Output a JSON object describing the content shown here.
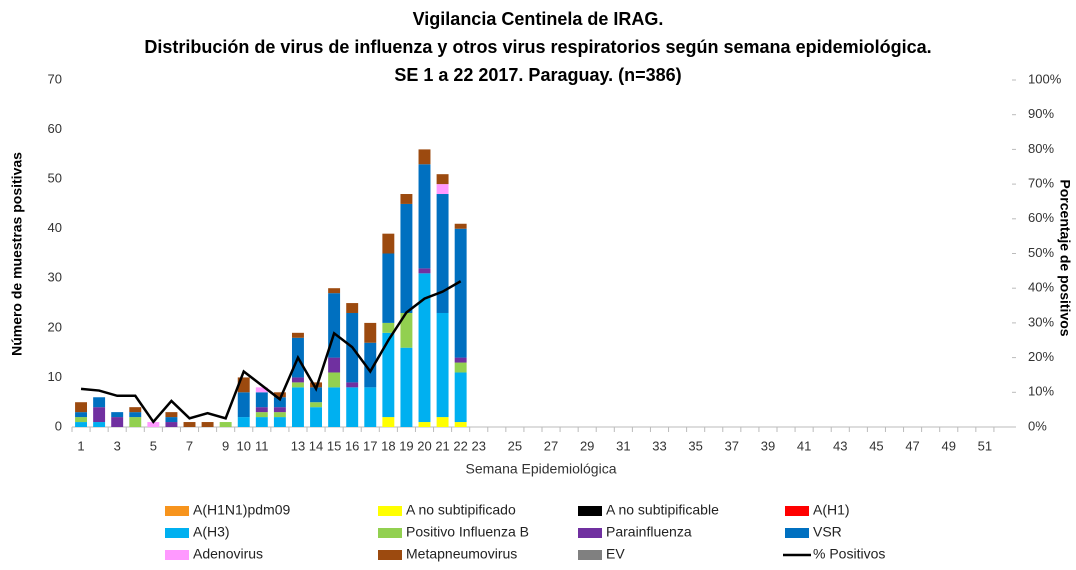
{
  "chart_data": {
    "type": "bar",
    "title": [
      "Vigilancia Centinela de IRAG.",
      "Distribución de virus de influenza y otros virus respiratorios según semana epidemiológica.",
      "SE 1 a 22 2017. Paraguay. (n=386)"
    ],
    "x_label": "Semana Epidemiológica",
    "y_label": "Número de muestras positivas",
    "y2_label": "Porcentaje de positivos",
    "stacked": true,
    "categories": [
      "1",
      null,
      "3",
      null,
      "5",
      null,
      "7",
      null,
      "9",
      "10",
      "11",
      null,
      "13",
      "14",
      "15",
      "16",
      "17",
      "18",
      "19",
      "20",
      "21",
      "22",
      "23",
      null,
      "25",
      null,
      "27",
      null,
      "29",
      null,
      "31",
      null,
      "33",
      null,
      "35",
      null,
      "37",
      null,
      "39",
      null,
      "41",
      null,
      "43",
      null,
      "45",
      null,
      "47",
      null,
      "49",
      null,
      "51",
      null
    ],
    "ylim": [
      0,
      70
    ],
    "yticks": [
      0,
      10,
      20,
      30,
      40,
      50,
      60,
      70
    ],
    "y2lim": [
      0,
      100
    ],
    "y2ticks": [
      {
        "value": 0,
        "label": "0%"
      },
      {
        "value": 10,
        "label": "10%"
      },
      {
        "value": 20,
        "label": "20%"
      },
      {
        "value": 30,
        "label": "30%"
      },
      {
        "value": 40,
        "label": "40%"
      },
      {
        "value": 50,
        "label": "50%"
      },
      {
        "value": 60,
        "label": "60%"
      },
      {
        "value": 70,
        "label": "70%"
      },
      {
        "value": 80,
        "label": "80%"
      },
      {
        "value": 90,
        "label": "90%"
      },
      {
        "value": 100,
        "label": "100%"
      }
    ],
    "series": [
      {
        "name": "A(H1N1)pdm09",
        "color": "#f7941d",
        "values": [
          0,
          0,
          0,
          0,
          0,
          0,
          0,
          0,
          0,
          0,
          0,
          0,
          0,
          0,
          0,
          0,
          0,
          0,
          0,
          0,
          0,
          0,
          null,
          null,
          null,
          null,
          null,
          null,
          null,
          null,
          null,
          null,
          null,
          null,
          null,
          null,
          null,
          null,
          null,
          null,
          null,
          null,
          null,
          null,
          null,
          null,
          null,
          null,
          null,
          null,
          null,
          null
        ]
      },
      {
        "name": "A no subtipificado",
        "color": "#ffff00",
        "values": [
          0,
          0,
          0,
          0,
          0,
          0,
          0,
          0,
          0,
          0,
          0,
          0,
          0,
          0,
          0,
          0,
          0,
          2,
          0,
          1,
          2,
          1,
          null,
          null,
          null,
          null,
          null,
          null,
          null,
          null,
          null,
          null,
          null,
          null,
          null,
          null,
          null,
          null,
          null,
          null,
          null,
          null,
          null,
          null,
          null,
          null,
          null,
          null,
          null,
          null,
          null,
          null
        ]
      },
      {
        "name": "A no subtipificable",
        "color": "#000000",
        "values": [
          0,
          0,
          0,
          0,
          0,
          0,
          0,
          0,
          0,
          0,
          0,
          0,
          0,
          0,
          0,
          0,
          0,
          0,
          0,
          0,
          0,
          0,
          null,
          null,
          null,
          null,
          null,
          null,
          null,
          null,
          null,
          null,
          null,
          null,
          null,
          null,
          null,
          null,
          null,
          null,
          null,
          null,
          null,
          null,
          null,
          null,
          null,
          null,
          null,
          null,
          null,
          null
        ]
      },
      {
        "name": "A(H1)",
        "color": "#ff0000",
        "values": [
          0,
          0,
          0,
          0,
          0,
          0,
          0,
          0,
          0,
          0,
          0,
          0,
          0,
          0,
          0,
          0,
          0,
          0,
          0,
          0,
          0,
          0,
          null,
          null,
          null,
          null,
          null,
          null,
          null,
          null,
          null,
          null,
          null,
          null,
          null,
          null,
          null,
          null,
          null,
          null,
          null,
          null,
          null,
          null,
          null,
          null,
          null,
          null,
          null,
          null,
          null,
          null
        ]
      },
      {
        "name": "A(H3)",
        "color": "#00b0f0",
        "values": [
          1,
          1,
          0,
          0,
          0,
          0,
          0,
          0,
          0,
          2,
          2,
          2,
          8,
          4,
          8,
          8,
          8,
          17,
          16,
          30,
          21,
          10,
          null,
          null,
          null,
          null,
          null,
          null,
          null,
          null,
          null,
          null,
          null,
          null,
          null,
          null,
          null,
          null,
          null,
          null,
          null,
          null,
          null,
          null,
          null,
          null,
          null,
          null,
          null,
          null,
          null,
          null
        ]
      },
      {
        "name": "Positivo Influenza  B",
        "color": "#92d050",
        "values": [
          1,
          0,
          0,
          2,
          0,
          0,
          0,
          0,
          1,
          0,
          1,
          1,
          1,
          1,
          3,
          0,
          0,
          2,
          7,
          0,
          0,
          2,
          null,
          null,
          null,
          null,
          null,
          null,
          null,
          null,
          null,
          null,
          null,
          null,
          null,
          null,
          null,
          null,
          null,
          null,
          null,
          null,
          null,
          null,
          null,
          null,
          null,
          null,
          null,
          null,
          null,
          null
        ]
      },
      {
        "name": "Parainfluenza",
        "color": "#7030a0",
        "values": [
          0,
          3,
          2,
          0,
          0,
          1,
          0,
          0,
          0,
          0,
          1,
          1,
          1,
          0,
          3,
          1,
          0,
          0,
          0,
          1,
          0,
          1,
          null,
          null,
          null,
          null,
          null,
          null,
          null,
          null,
          null,
          null,
          null,
          null,
          null,
          null,
          null,
          null,
          null,
          null,
          null,
          null,
          null,
          null,
          null,
          null,
          null,
          null,
          null,
          null,
          null,
          null
        ]
      },
      {
        "name": "VSR",
        "color": "#0070c0",
        "values": [
          1,
          2,
          1,
          1,
          0,
          1,
          0,
          0,
          0,
          5,
          3,
          2,
          8,
          3,
          13,
          14,
          9,
          14,
          22,
          21,
          24,
          26,
          null,
          null,
          null,
          null,
          null,
          null,
          null,
          null,
          null,
          null,
          null,
          null,
          null,
          null,
          null,
          null,
          null,
          null,
          null,
          null,
          null,
          null,
          null,
          null,
          null,
          null,
          null,
          null,
          null,
          null
        ]
      },
      {
        "name": "Adenovirus",
        "color": "#ff99ff",
        "values": [
          0,
          0,
          0,
          0,
          1,
          0,
          0,
          0,
          0,
          0,
          1,
          0,
          0,
          0,
          0,
          0,
          0,
          0,
          0,
          0,
          2,
          0,
          null,
          null,
          null,
          null,
          null,
          null,
          null,
          null,
          null,
          null,
          null,
          null,
          null,
          null,
          null,
          null,
          null,
          null,
          null,
          null,
          null,
          null,
          null,
          null,
          null,
          null,
          null,
          null,
          null,
          null
        ]
      },
      {
        "name": "Metapneumovirus",
        "color": "#9c4a0f",
        "values": [
          2,
          0,
          0,
          1,
          0,
          1,
          1,
          1,
          0,
          3,
          0,
          1,
          1,
          1,
          1,
          2,
          4,
          4,
          2,
          3,
          2,
          1,
          null,
          null,
          null,
          null,
          null,
          null,
          null,
          null,
          null,
          null,
          null,
          null,
          null,
          null,
          null,
          null,
          null,
          null,
          null,
          null,
          null,
          null,
          null,
          null,
          null,
          null,
          null,
          null,
          null,
          null
        ]
      },
      {
        "name": "EV",
        "color": "#808080",
        "values": [
          0,
          0,
          0,
          0,
          0,
          0,
          0,
          0,
          0,
          0,
          0,
          0,
          0,
          0,
          0,
          0,
          0,
          0,
          0,
          0,
          0,
          0,
          null,
          null,
          null,
          null,
          null,
          null,
          null,
          null,
          null,
          null,
          null,
          null,
          null,
          null,
          null,
          null,
          null,
          null,
          null,
          null,
          null,
          null,
          null,
          null,
          null,
          null,
          null,
          null,
          null,
          null
        ]
      },
      {
        "name": "% Positivos",
        "color": "#000000",
        "type": "line",
        "axis": "y2",
        "values": [
          11,
          10.5,
          9,
          9,
          1.5,
          7.5,
          2.5,
          4,
          2.5,
          16,
          12,
          8,
          20,
          11,
          27,
          23,
          16,
          25,
          33,
          37,
          39,
          42,
          null,
          null,
          null,
          null,
          null,
          null,
          null,
          null,
          null,
          null,
          null,
          null,
          null,
          null,
          null,
          null,
          null,
          null,
          null,
          null,
          null,
          null,
          null,
          null,
          null,
          null,
          null,
          null,
          null,
          null
        ]
      }
    ]
  }
}
